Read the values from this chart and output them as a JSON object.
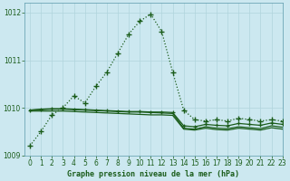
{
  "title": "Graphe pression niveau de la mer (hPa)",
  "background_color": "#cce8f0",
  "grid_color": "#b0d4dc",
  "line_color": "#1a5c1a",
  "xlim": [
    -0.5,
    23
  ],
  "ylim": [
    1009,
    1012.2
  ],
  "xtick_labels": [
    "0",
    "1",
    "2",
    "3",
    "4",
    "5",
    "6",
    "7",
    "8",
    "9",
    "10",
    "11",
    "12",
    "13",
    "14",
    "15",
    "16",
    "17",
    "18",
    "19",
    "20",
    "21",
    "22",
    "23"
  ],
  "xticks": [
    0,
    1,
    2,
    3,
    4,
    5,
    6,
    7,
    8,
    9,
    10,
    11,
    12,
    13,
    14,
    15,
    16,
    17,
    18,
    19,
    20,
    21,
    22,
    23
  ],
  "yticks": [
    1009,
    1010,
    1011,
    1012
  ],
  "hours": [
    0,
    1,
    2,
    3,
    4,
    5,
    6,
    7,
    8,
    9,
    10,
    11,
    12,
    13,
    14,
    15,
    16,
    17,
    18,
    19,
    20,
    21,
    22,
    23
  ],
  "series1": [
    1009.2,
    1009.5,
    1009.85,
    1010.0,
    1010.25,
    1010.1,
    1010.45,
    1010.75,
    1011.15,
    1011.55,
    1011.82,
    1011.97,
    1011.6,
    1010.75,
    1009.95,
    1009.75,
    1009.72,
    1009.75,
    1009.72,
    1009.78,
    1009.75,
    1009.72,
    1009.75,
    1009.72
  ],
  "series2": [
    1009.95,
    1009.97,
    1009.98,
    1009.98,
    1009.97,
    1009.96,
    1009.95,
    1009.94,
    1009.93,
    1009.92,
    1009.92,
    1009.91,
    1009.91,
    1009.9,
    1009.62,
    1009.6,
    1009.65,
    1009.63,
    1009.62,
    1009.67,
    1009.65,
    1009.63,
    1009.68,
    1009.65
  ],
  "series3": [
    1009.95,
    1009.96,
    1009.97,
    1009.97,
    1009.96,
    1009.95,
    1009.94,
    1009.93,
    1009.92,
    1009.91,
    1009.91,
    1009.9,
    1009.89,
    1009.88,
    1009.57,
    1009.55,
    1009.6,
    1009.57,
    1009.56,
    1009.6,
    1009.58,
    1009.56,
    1009.62,
    1009.59
  ],
  "series4": [
    1009.93,
    1009.93,
    1009.93,
    1009.93,
    1009.92,
    1009.91,
    1009.9,
    1009.89,
    1009.88,
    1009.87,
    1009.86,
    1009.85,
    1009.85,
    1009.84,
    1009.55,
    1009.53,
    1009.57,
    1009.54,
    1009.53,
    1009.57,
    1009.55,
    1009.53,
    1009.58,
    1009.55
  ]
}
